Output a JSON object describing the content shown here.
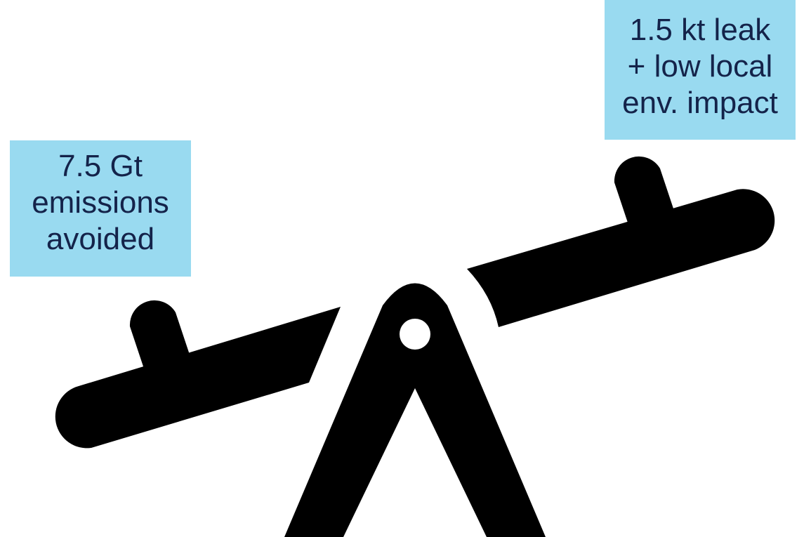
{
  "illustration": {
    "icon": "seesaw-icon",
    "ink_color": "#000000",
    "background_color": "#ffffff"
  },
  "labels": {
    "box_color": "#99daf0",
    "text_color": "#14234a",
    "left": {
      "lines": [
        "7.5 Gt",
        "emissions",
        "avoided"
      ]
    },
    "right": {
      "lines": [
        "1.5 kt leak",
        "+ low local",
        "env. impact"
      ]
    }
  }
}
